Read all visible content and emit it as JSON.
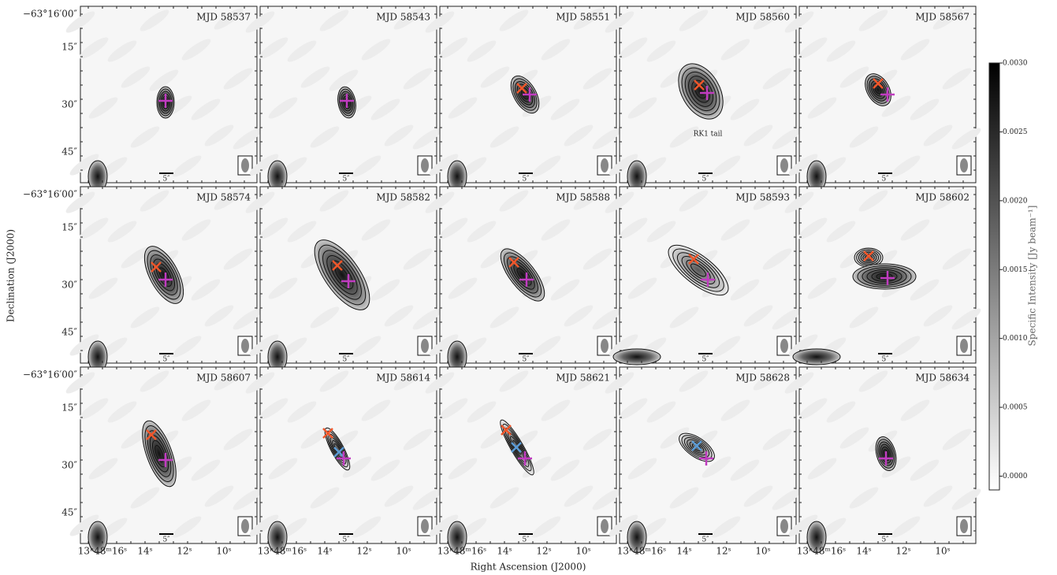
{
  "figure": {
    "panels": [
      {
        "label": "MJD 58537"
      },
      {
        "label": "MJD 58543"
      },
      {
        "label": "MJD 58551"
      },
      {
        "label": "MJD 58560",
        "annotation": "RK1 tail"
      },
      {
        "label": "MJD 58567"
      },
      {
        "label": "MJD 58574"
      },
      {
        "label": "MJD 58582"
      },
      {
        "label": "MJD 58588"
      },
      {
        "label": "MJD 58593"
      },
      {
        "label": "MJD 58602"
      },
      {
        "label": "MJD 58607"
      },
      {
        "label": "MJD 58614"
      },
      {
        "label": "MJD 58621"
      },
      {
        "label": "MJD 58628"
      },
      {
        "label": "MJD 58634"
      }
    ],
    "y_axis": {
      "label": "Declination (J2000)",
      "tick_labels": [
        "−63°16′00″",
        "15″",
        "30″",
        "45″"
      ]
    },
    "x_axis": {
      "label": "Right Ascension (J2000)",
      "tick_labels": [
        "13ʰ48ᵐ16ˢ",
        "14ˢ",
        "12ˢ",
        "10ˢ"
      ]
    },
    "scale_label": "5″",
    "colorbar": {
      "label": "Specific Intensity [Jy beam⁻¹]",
      "lim": [
        -0.0001,
        0.003
      ],
      "ticks": [
        {
          "value": 0,
          "label": "0.0000"
        },
        {
          "value": 0.0005,
          "label": "0.0005"
        },
        {
          "value": 0.001,
          "label": "0.0010"
        },
        {
          "value": 0.0015,
          "label": "0.0015"
        },
        {
          "value": 0.002,
          "label": "0.0020"
        },
        {
          "value": 0.0025,
          "label": "0.0025"
        },
        {
          "value": 0.003,
          "label": "0.0030"
        }
      ]
    }
  }
}
